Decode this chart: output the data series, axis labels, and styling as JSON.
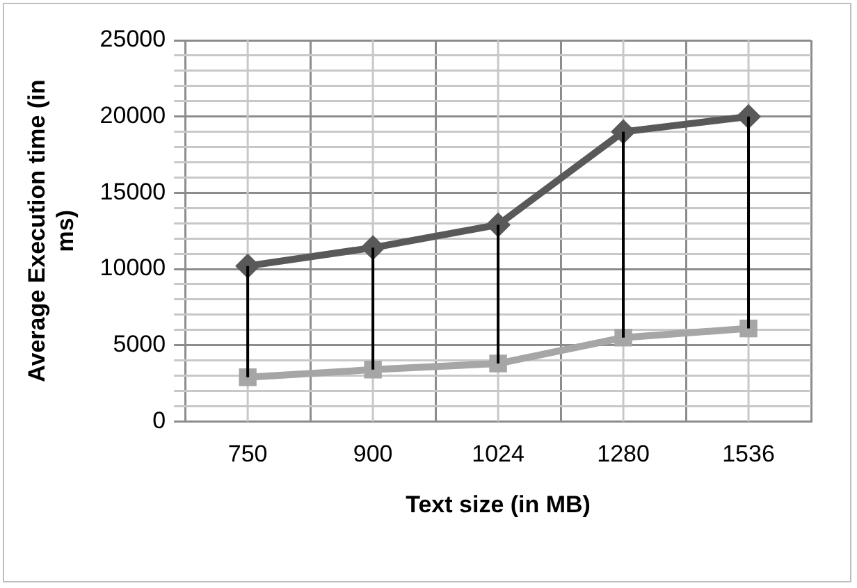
{
  "chart_data": {
    "type": "line",
    "xlabel": "Text size (in MB)",
    "ylabel": "Average Execution time (in ms)",
    "categories": [
      "750",
      "900",
      "1024",
      "1280",
      "1536"
    ],
    "series": [
      {
        "color": "#595959",
        "marker": "diamond",
        "values": [
          10200,
          11400,
          12900,
          19000,
          20000
        ],
        "errors": [
          [
            2900,
            10200
          ],
          [
            3400,
            11400
          ],
          [
            3800,
            12900
          ],
          [
            5500,
            19000
          ],
          [
            6100,
            20000
          ]
        ]
      },
      {
        "color": "#a6a6a6",
        "marker": "square",
        "values": [
          2900,
          3400,
          3800,
          5500,
          6100
        ]
      }
    ],
    "ylim": [
      0,
      25000
    ],
    "yticks": [
      0,
      {
        "value": 1000,
        "label": null
      },
      {
        "value": 2000,
        "label": null
      },
      {
        "value": 3000,
        "label": null
      },
      {
        "value": 4000,
        "label": null
      },
      5000,
      {
        "value": 6000,
        "label": null
      },
      {
        "value": 7000,
        "label": null
      },
      {
        "value": 8000,
        "label": null
      },
      {
        "value": 9000,
        "label": null
      },
      10000,
      {
        "value": 11000,
        "label": null
      },
      {
        "value": 12000,
        "label": null
      },
      {
        "value": 13000,
        "label": null
      },
      {
        "value": 14000,
        "label": null
      },
      15000,
      {
        "value": 16000,
        "label": null
      },
      {
        "value": 17000,
        "label": null
      },
      {
        "value": 18000,
        "label": null
      },
      {
        "value": 19000,
        "label": null
      },
      20000,
      {
        "value": 21000,
        "label": null
      },
      {
        "value": 22000,
        "label": null
      },
      {
        "value": 23000,
        "label": null
      },
      {
        "value": 24000,
        "label": null
      },
      25000
    ],
    "grid": true,
    "legend": false
  }
}
